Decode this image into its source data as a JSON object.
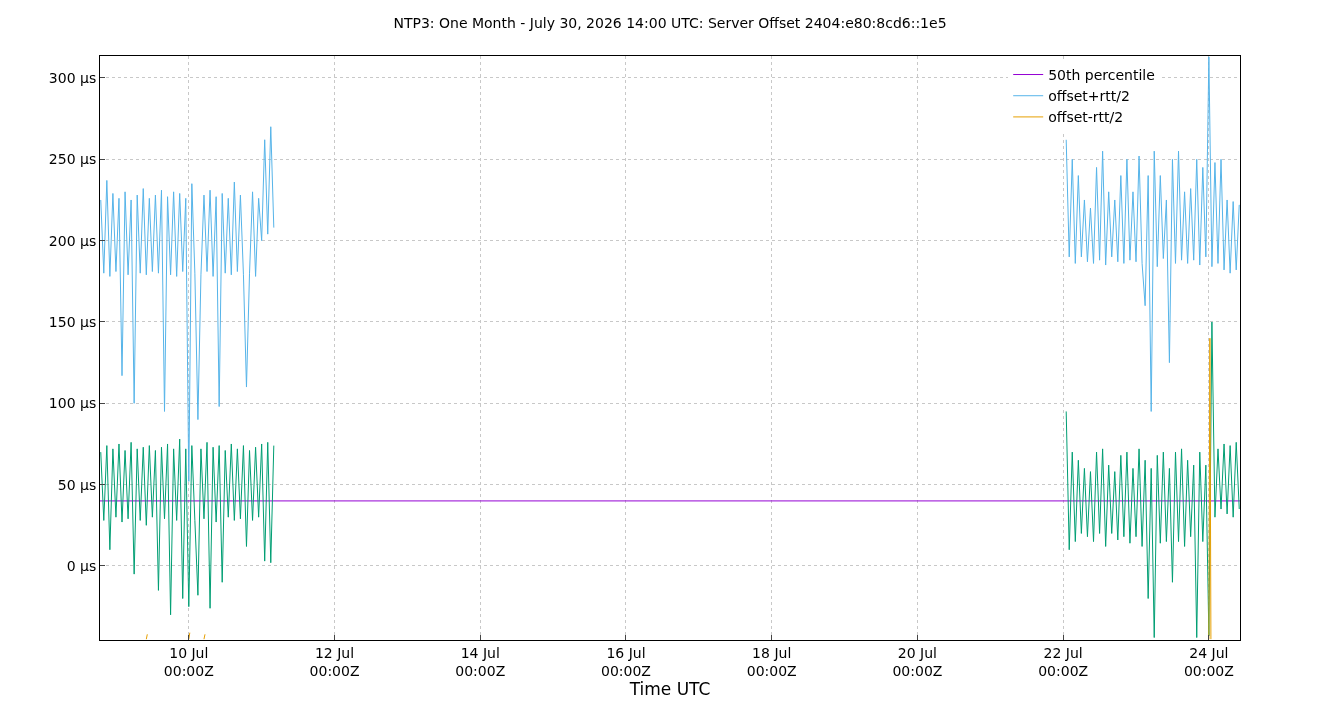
{
  "chart_data": {
    "type": "line",
    "title": "NTP3: One Month - July 30, 2026 14:00 UTC: Server Offset 2404:e80:8cd6::1e5",
    "xlabel": "Time UTC",
    "xlim": [
      "2026-07-08T18:45",
      "2026-07-24T10:15"
    ],
    "xticks": [
      {
        "value": "2026-07-10",
        "label": "10 Jul\n00:00Z"
      },
      {
        "value": "2026-07-12",
        "label": "12 Jul\n00:00Z"
      },
      {
        "value": "2026-07-14",
        "label": "14 Jul\n00:00Z"
      },
      {
        "value": "2026-07-16",
        "label": "16 Jul\n00:00Z"
      },
      {
        "value": "2026-07-18",
        "label": "18 Jul\n00:00Z"
      },
      {
        "value": "2026-07-20",
        "label": "20 Jul\n00:00Z"
      },
      {
        "value": "2026-07-22",
        "label": "22 Jul\n00:00Z"
      },
      {
        "value": "2026-07-24",
        "label": "24 Jul\n00:00Z"
      }
    ],
    "ylim": [
      -45.5,
      313.5
    ],
    "yticks": [
      {
        "value": 0,
        "label": "0 µs"
      },
      {
        "value": 50,
        "label": "50 µs"
      },
      {
        "value": 100,
        "label": "100 µs"
      },
      {
        "value": 150,
        "label": "150 µs"
      },
      {
        "value": 200,
        "label": "200 µs"
      },
      {
        "value": 250,
        "label": "250 µs"
      },
      {
        "value": 300,
        "label": "300 µs"
      }
    ],
    "grid": true,
    "legend": "top right",
    "marker": "none",
    "line_style": "solid",
    "series": [
      {
        "name": "50th percentile",
        "color": "#9400d3",
        "x": [
          "2026-07-08T18:45",
          "2026-07-24T10:15"
        ],
        "values": [
          40,
          40
        ]
      },
      {
        "color": "#009e73",
        "x": [
          "2026-07-08T19:00",
          "2026-07-08T20:00",
          "2026-07-08T21:00",
          "2026-07-08T22:00",
          "2026-07-08T23:00",
          "2026-07-09T00:00",
          "2026-07-09T01:00",
          "2026-07-09T02:00",
          "2026-07-09T03:00",
          "2026-07-09T04:00",
          "2026-07-09T05:00",
          "2026-07-09T06:00",
          "2026-07-09T07:00",
          "2026-07-09T08:00",
          "2026-07-09T09:00",
          "2026-07-09T10:00",
          "2026-07-09T11:00",
          "2026-07-09T12:00",
          "2026-07-09T13:00",
          "2026-07-09T14:00",
          "2026-07-09T15:00",
          "2026-07-09T16:00",
          "2026-07-09T17:00",
          "2026-07-09T18:00",
          "2026-07-09T19:00",
          "2026-07-09T20:00",
          "2026-07-09T21:00",
          "2026-07-09T22:00",
          "2026-07-09T23:00",
          "2026-07-10T00:00",
          "2026-07-10T01:00",
          "2026-07-10T02:00",
          "2026-07-10T03:00",
          "2026-07-10T04:00",
          "2026-07-10T05:00",
          "2026-07-10T06:00",
          "2026-07-10T07:00",
          "2026-07-10T08:00",
          "2026-07-10T09:00",
          "2026-07-10T10:00",
          "2026-07-10T11:00",
          "2026-07-10T12:00",
          "2026-07-10T13:00",
          "2026-07-10T14:00",
          "2026-07-10T15:00",
          "2026-07-10T16:00",
          "2026-07-10T17:00",
          "2026-07-10T18:00",
          "2026-07-10T19:00",
          "2026-07-10T20:00",
          "2026-07-10T21:00",
          "2026-07-10T22:00",
          "2026-07-10T23:00",
          "2026-07-11T00:00",
          "2026-07-11T01:00",
          "2026-07-11T02:00",
          "2026-07-11T03:00",
          "2026-07-11T04:00",
          "2026-07-11T05:00",
          "2026-07-22T01:00",
          "2026-07-22T02:00",
          "2026-07-22T03:00",
          "2026-07-22T04:00",
          "2026-07-22T05:00",
          "2026-07-22T06:00",
          "2026-07-22T07:00",
          "2026-07-22T08:00",
          "2026-07-22T09:00",
          "2026-07-22T10:00",
          "2026-07-22T11:00",
          "2026-07-22T12:00",
          "2026-07-22T13:00",
          "2026-07-22T14:00",
          "2026-07-22T15:00",
          "2026-07-22T16:00",
          "2026-07-22T17:00",
          "2026-07-22T18:00",
          "2026-07-22T19:00",
          "2026-07-22T20:00",
          "2026-07-22T21:00",
          "2026-07-22T22:00",
          "2026-07-22T23:00",
          "2026-07-23T00:00",
          "2026-07-23T01:00",
          "2026-07-23T02:00",
          "2026-07-23T03:00",
          "2026-07-23T04:00",
          "2026-07-23T05:00",
          "2026-07-23T06:00",
          "2026-07-23T07:00",
          "2026-07-23T08:00",
          "2026-07-23T09:00",
          "2026-07-23T10:00",
          "2026-07-23T11:00",
          "2026-07-23T12:00",
          "2026-07-23T13:00",
          "2026-07-23T14:00",
          "2026-07-23T15:00",
          "2026-07-23T16:00",
          "2026-07-23T17:00",
          "2026-07-23T18:00",
          "2026-07-23T19:00",
          "2026-07-23T20:00",
          "2026-07-23T21:00",
          "2026-07-23T22:00",
          "2026-07-23T23:00",
          "2026-07-24T00:00",
          "2026-07-24T01:00",
          "2026-07-24T02:00",
          "2026-07-24T03:00",
          "2026-07-24T04:00",
          "2026-07-24T05:00",
          "2026-07-24T06:00",
          "2026-07-24T07:00",
          "2026-07-24T08:00",
          "2026-07-24T09:00",
          "2026-07-24T10:00"
        ],
        "values": [
          70,
          28,
          74,
          10,
          72,
          30,
          75,
          27,
          71,
          29,
          76,
          -5,
          72,
          28,
          73,
          25,
          74,
          30,
          71,
          -15,
          73,
          29,
          75,
          -30,
          72,
          28,
          78,
          -20,
          72,
          -25,
          74,
          28,
          -18,
          72,
          29,
          76,
          -26,
          73,
          27,
          74,
          -10,
          71,
          30,
          75,
          28,
          72,
          29,
          74,
          12,
          71,
          28,
          73,
          30,
          75,
          3,
          76,
          2,
          74,
          null,
          95,
          10,
          70,
          15,
          65,
          20,
          60,
          18,
          58,
          15,
          70,
          20,
          72,
          12,
          62,
          20,
          58,
          16,
          68,
          18,
          70,
          14,
          60,
          18,
          72,
          12,
          65,
          -20,
          60,
          -44,
          68,
          14,
          70,
          15,
          60,
          -10,
          70,
          15,
          72,
          12,
          65,
          18,
          62,
          -44,
          70,
          15,
          62,
          -43,
          150,
          30,
          72,
          35,
          75,
          32,
          74,
          30,
          76,
          35
        ]
      },
      {
        "name": "offset+rtt/2",
        "color": "#56b4e9",
        "x": [
          "2026-07-08T19:00",
          "2026-07-08T20:00",
          "2026-07-08T21:00",
          "2026-07-08T22:00",
          "2026-07-08T23:00",
          "2026-07-09T00:00",
          "2026-07-09T01:00",
          "2026-07-09T02:00",
          "2026-07-09T03:00",
          "2026-07-09T04:00",
          "2026-07-09T05:00",
          "2026-07-09T06:00",
          "2026-07-09T07:00",
          "2026-07-09T08:00",
          "2026-07-09T09:00",
          "2026-07-09T10:00",
          "2026-07-09T11:00",
          "2026-07-09T12:00",
          "2026-07-09T13:00",
          "2026-07-09T14:00",
          "2026-07-09T15:00",
          "2026-07-09T16:00",
          "2026-07-09T17:00",
          "2026-07-09T18:00",
          "2026-07-09T19:00",
          "2026-07-09T20:00",
          "2026-07-09T21:00",
          "2026-07-09T22:00",
          "2026-07-09T23:00",
          "2026-07-10T00:00",
          "2026-07-10T01:00",
          "2026-07-10T02:00",
          "2026-07-10T03:00",
          "2026-07-10T04:00",
          "2026-07-10T05:00",
          "2026-07-10T06:00",
          "2026-07-10T07:00",
          "2026-07-10T08:00",
          "2026-07-10T09:00",
          "2026-07-10T10:00",
          "2026-07-10T11:00",
          "2026-07-10T12:00",
          "2026-07-10T13:00",
          "2026-07-10T14:00",
          "2026-07-10T15:00",
          "2026-07-10T16:00",
          "2026-07-10T17:00",
          "2026-07-10T18:00",
          "2026-07-10T19:00",
          "2026-07-10T20:00",
          "2026-07-10T21:00",
          "2026-07-10T22:00",
          "2026-07-10T23:00",
          "2026-07-11T00:00",
          "2026-07-11T01:00",
          "2026-07-11T02:00",
          "2026-07-11T03:00",
          "2026-07-11T04:00",
          "2026-07-11T05:00",
          "2026-07-22T01:00",
          "2026-07-22T02:00",
          "2026-07-22T03:00",
          "2026-07-22T04:00",
          "2026-07-22T05:00",
          "2026-07-22T06:00",
          "2026-07-22T07:00",
          "2026-07-22T08:00",
          "2026-07-22T09:00",
          "2026-07-22T10:00",
          "2026-07-22T11:00",
          "2026-07-22T12:00",
          "2026-07-22T13:00",
          "2026-07-22T14:00",
          "2026-07-22T15:00",
          "2026-07-22T16:00",
          "2026-07-22T17:00",
          "2026-07-22T18:00",
          "2026-07-22T19:00",
          "2026-07-22T20:00",
          "2026-07-22T21:00",
          "2026-07-22T22:00",
          "2026-07-22T23:00",
          "2026-07-23T00:00",
          "2026-07-23T01:00",
          "2026-07-23T02:00",
          "2026-07-23T03:00",
          "2026-07-23T04:00",
          "2026-07-23T05:00",
          "2026-07-23T06:00",
          "2026-07-23T07:00",
          "2026-07-23T08:00",
          "2026-07-23T09:00",
          "2026-07-23T10:00",
          "2026-07-23T11:00",
          "2026-07-23T12:00",
          "2026-07-23T13:00",
          "2026-07-23T14:00",
          "2026-07-23T15:00",
          "2026-07-23T16:00",
          "2026-07-23T17:00",
          "2026-07-23T18:00",
          "2026-07-23T19:00",
          "2026-07-23T20:00",
          "2026-07-23T21:00",
          "2026-07-23T22:00",
          "2026-07-23T23:00",
          "2026-07-24T00:00",
          "2026-07-24T01:00",
          "2026-07-24T02:00",
          "2026-07-24T03:00",
          "2026-07-24T04:00",
          "2026-07-24T05:00",
          "2026-07-24T06:00",
          "2026-07-24T07:00",
          "2026-07-24T08:00",
          "2026-07-24T09:00",
          "2026-07-24T10:00"
        ],
        "values": [
          225,
          180,
          237,
          178,
          229,
          181,
          226,
          117,
          230,
          179,
          225,
          100,
          228,
          180,
          232,
          179,
          226,
          181,
          228,
          180,
          231,
          95,
          227,
          179,
          230,
          178,
          229,
          181,
          226,
          52,
          235,
          180,
          90,
          179,
          228,
          181,
          231,
          178,
          227,
          98,
          229,
          180,
          226,
          179,
          236,
          181,
          228,
          179,
          110,
          180,
          230,
          178,
          226,
          200,
          262,
          204,
          270,
          208,
          null,
          262,
          190,
          250,
          186,
          240,
          190,
          225,
          187,
          220,
          186,
          245,
          188,
          255,
          185,
          230,
          190,
          225,
          187,
          240,
          186,
          250,
          188,
          230,
          187,
          252,
          186,
          160,
          240,
          95,
          255,
          184,
          240,
          189,
          225,
          125,
          250,
          186,
          255,
          188,
          230,
          186,
          232,
          188,
          250,
          185,
          245,
          190,
          313,
          184,
          248,
          186,
          250,
          182,
          225,
          180,
          224,
          182,
          222
        ]
      },
      {
        "name": "offset-rtt/2",
        "color": "#e69f00",
        "x": [
          "2026-07-09T10:00",
          "2026-07-09T10:20",
          "2026-07-09T10:40",
          "2026-07-10T00:00",
          "2026-07-10T00:20",
          "2026-07-10T00:40",
          "2026-07-10T05:00",
          "2026-07-10T05:20",
          "2026-07-10T05:40",
          "2026-07-24T00:00",
          "2026-07-24T00:20",
          "2026-07-24T00:40"
        ],
        "values": [
          -45,
          -42,
          null,
          -45,
          -41,
          null,
          -45,
          -42,
          null,
          -45,
          140,
          -45
        ]
      }
    ]
  }
}
